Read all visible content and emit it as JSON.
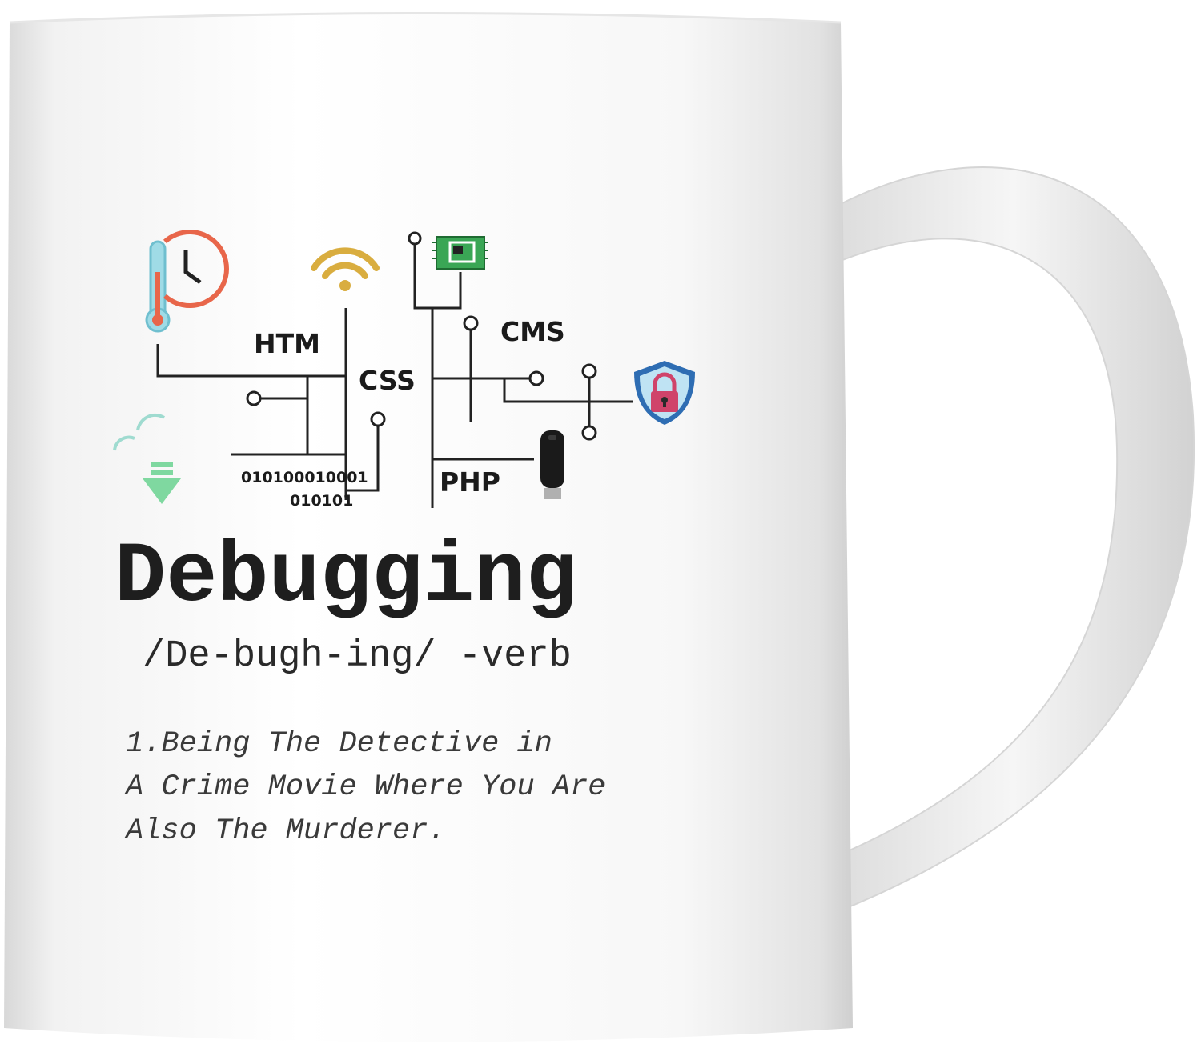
{
  "graphic": {
    "labels": {
      "htm": "HTM",
      "css": "CSS",
      "cms": "CMS",
      "php": "PHP",
      "binary_line1": "010100010001",
      "binary_line2": "010101"
    },
    "icons": [
      "thermometer-icon",
      "clock-icon",
      "wifi-icon",
      "chip-icon",
      "lock-shield-icon",
      "usb-drive-icon",
      "download-cloud-icon"
    ],
    "colors": {
      "clock": "#e8664a",
      "thermometer": "#8fd3e0",
      "wifi": "#d9ad3f",
      "chip": "#3aa655",
      "shield": "#2e6db3",
      "lock": "#d0436a",
      "download_arrow": "#7fd8a0",
      "circuit": "#222222"
    }
  },
  "text": {
    "title": "Debugging",
    "pronunciation": "/De-bugh-ing/ -verb",
    "definition_line1": "1.Being The Detective in",
    "definition_line2": "A Crime Movie Where You Are",
    "definition_line3": "Also The Murderer."
  }
}
